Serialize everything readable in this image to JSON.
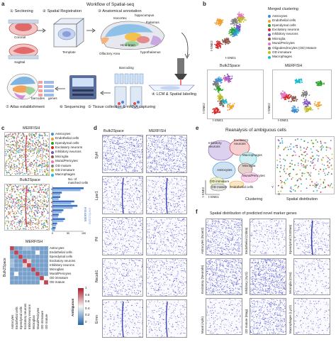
{
  "panel_letters": {
    "a": "a",
    "b": "b",
    "c": "c",
    "d": "d",
    "e": "e",
    "f": "f"
  },
  "panel_a": {
    "workflow_title": "Workflow of Spatial-seq",
    "steps": [
      "① Sectioning",
      "② Spatial Registration",
      "③ Anatomical annotation",
      "④ LCM & Spatial labeling",
      "⑤ Tissue collection & mRNA capturing",
      "⑥ Sequencing",
      "⑦ Atlas establishment"
    ],
    "section_labels": [
      "Coronal",
      "Sagittal"
    ],
    "template_label": "Template",
    "anatomy_labels": [
      "Isocortex",
      "hippocampus",
      "thalamus",
      "Hind brain",
      "hypothalamus",
      "Olfactory Area"
    ],
    "barcoding_label": "Barcoding",
    "barcodes_label": "barcodes",
    "genes_label": "genes"
  },
  "panel_b": {
    "title": "Merged clustering",
    "legend": [
      {
        "label": "Astrocytes",
        "color": "#3b8fd6"
      },
      {
        "label": "Endothelial cells",
        "color": "#f0a030"
      },
      {
        "label": "Ependymal cells",
        "color": "#2ca02c"
      },
      {
        "label": "Excitatory neurons",
        "color": "#d62728"
      },
      {
        "label": "Inhibitory neurons",
        "color": "#7b52c0"
      },
      {
        "label": "Microglia",
        "color": "#8c564b"
      },
      {
        "label": "Mural/Pericytes",
        "color": "#e377c2"
      },
      {
        "label": "Oligodendrocytes (OD) Mature",
        "color": "#7f7f7f"
      },
      {
        "label": "OD immature",
        "color": "#bcbd22"
      },
      {
        "label": "Macrophages",
        "color": "#17becf"
      }
    ],
    "sub_titles": [
      "Bulk2Space",
      "MERFISH"
    ],
    "xlabel": "t-SNE1",
    "ylabel": "t-SNE2"
  },
  "panel_c": {
    "titles": [
      "MERFISH",
      "Bulk2Space",
      "MERFISH"
    ],
    "legend": [
      {
        "label": "Astrocytes",
        "color": "#3b8fd6"
      },
      {
        "label": "Endothelial cells",
        "color": "#f0a030"
      },
      {
        "label": "Ependymal cells",
        "color": "#2ca02c"
      },
      {
        "label": "Excitatory neurons",
        "color": "#d62728"
      },
      {
        "label": "Inhibitory neurons",
        "color": "#7b52c0"
      },
      {
        "label": "Microglia",
        "color": "#8c564b"
      },
      {
        "label": "Mural/Pericytes",
        "color": "#e377c2"
      },
      {
        "label": "OD mature",
        "color": "#7f7f7f"
      },
      {
        "label": "OD immature",
        "color": "#bcbd22"
      },
      {
        "label": "Macrophages",
        "color": "#17becf"
      }
    ],
    "matched_title": "No. of matched cells",
    "matched_ticks": [
      "0",
      "50",
      "100"
    ],
    "bar_legend": [
      "MERFISH",
      "Bulk2Space"
    ],
    "heatmap_rows": [
      "Astrocytes",
      "Endothelial cells",
      "Ependymal cells",
      "Excitatory neurons",
      "Inhibitory neurons",
      "Microglias",
      "Mural/Pericytes",
      "OD immature",
      "OD mature"
    ],
    "heatmap_cols": [
      "Astrocytes",
      "Endothelial cells",
      "Ependymal cells",
      "Excitatory neurons",
      "Inhibitory neurons",
      "Microglias",
      "Mural/Pericytes",
      "OD immature",
      "OD mature"
    ],
    "heatmap_ylabel": "Bulk2Space",
    "colorbar_ticks": [
      "1",
      "0.8",
      "0.6",
      "0.4",
      "0.2",
      "0"
    ],
    "ambiguous_label": "Ambiguous"
  },
  "panel_d": {
    "col_titles": [
      "Bulk2Space",
      "MERFISH"
    ],
    "genes": [
      "Syt4",
      "Lpar1",
      "Ptf",
      "Necab1",
      "Ermn"
    ]
  },
  "panel_e": {
    "title": "Reanalysis of ambiguous cells",
    "cluster_labels": [
      "Inhibitory neurons",
      "Excitatory neurons",
      "Macrophages",
      "Microglia",
      "Mural/Pericytes",
      "Astrocytes",
      "OD immature",
      "OD mature",
      "Endothelial cells"
    ],
    "xlabel_left": "t-SNE1",
    "ylabel_left": "t-SNE2",
    "caption_left": "Clustering",
    "caption_right": "Spatial distribution",
    "xlabel_right": "X",
    "ylabel_right": "Y"
  },
  "panel_f": {
    "title": "Spatial distribution of predicted novel marker genes",
    "labels": [
      "Astrocytes (Ncan2)",
      "Endothelial (Cldn5)",
      "Ependymal (S100a6)",
      "Excitatory (Neurod6)",
      "Inhibitory (Syt1)",
      "Microglia (Ctss)",
      "Mural (Apln)",
      "OD mature (Mag)",
      "Macrophages (Lyz2)"
    ]
  },
  "chart_data": [
    {
      "type": "heatmap",
      "title": "MERFISH",
      "ylabel": "Bulk2Space",
      "rows": [
        "Astrocytes",
        "Endothelial cells",
        "Ependymal cells",
        "Excitatory neurons",
        "Inhibitory neurons",
        "Microglias",
        "Mural/Pericytes",
        "OD immature",
        "OD mature"
      ],
      "cols": [
        "Astrocytes",
        "Endothelial cells",
        "Ependymal cells",
        "Excitatory neurons",
        "Inhibitory neurons",
        "Microglias",
        "Mural/Pericytes",
        "OD immature",
        "OD mature"
      ],
      "values": [
        [
          0.9,
          0.2,
          0.2,
          0.3,
          0.3,
          0.2,
          0.2,
          0.2,
          0.2
        ],
        [
          0.2,
          0.9,
          0.2,
          0.2,
          0.2,
          0.2,
          0.5,
          0.2,
          0.2
        ],
        [
          0.2,
          0.2,
          0.9,
          0.2,
          0.2,
          0.2,
          0.2,
          0.2,
          0.2
        ],
        [
          0.3,
          0.2,
          0.2,
          0.9,
          0.6,
          0.2,
          0.2,
          0.2,
          0.2
        ],
        [
          0.3,
          0.2,
          0.2,
          0.6,
          0.9,
          0.2,
          0.2,
          0.2,
          0.2
        ],
        [
          0.2,
          0.2,
          0.2,
          0.2,
          0.2,
          0.9,
          0.2,
          0.2,
          0.2
        ],
        [
          0.2,
          0.5,
          0.2,
          0.2,
          0.2,
          0.2,
          0.9,
          0.2,
          0.2
        ],
        [
          0.2,
          0.2,
          0.2,
          0.2,
          0.2,
          0.2,
          0.2,
          0.9,
          0.5
        ],
        [
          0.2,
          0.2,
          0.2,
          0.2,
          0.2,
          0.2,
          0.2,
          0.5,
          0.9
        ]
      ],
      "zlim": [
        0,
        1
      ]
    },
    {
      "type": "bar",
      "title": "No. of matched cells",
      "categories": [
        "Astrocytes",
        "Endothelial cells",
        "Ependymal cells",
        "Excitatory neurons",
        "Inhibitory neurons",
        "Microglia",
        "Mural/Pericytes",
        "OD mature",
        "OD immature",
        "Macrophages"
      ],
      "series": [
        {
          "name": "MERFISH",
          "values": [
            105,
            30,
            25,
            70,
            80,
            35,
            20,
            40,
            15,
            10
          ]
        },
        {
          "name": "Bulk2Space",
          "values": [
            90,
            25,
            20,
            60,
            65,
            30,
            18,
            35,
            12,
            8
          ]
        }
      ],
      "xlim": [
        0,
        100
      ]
    }
  ]
}
